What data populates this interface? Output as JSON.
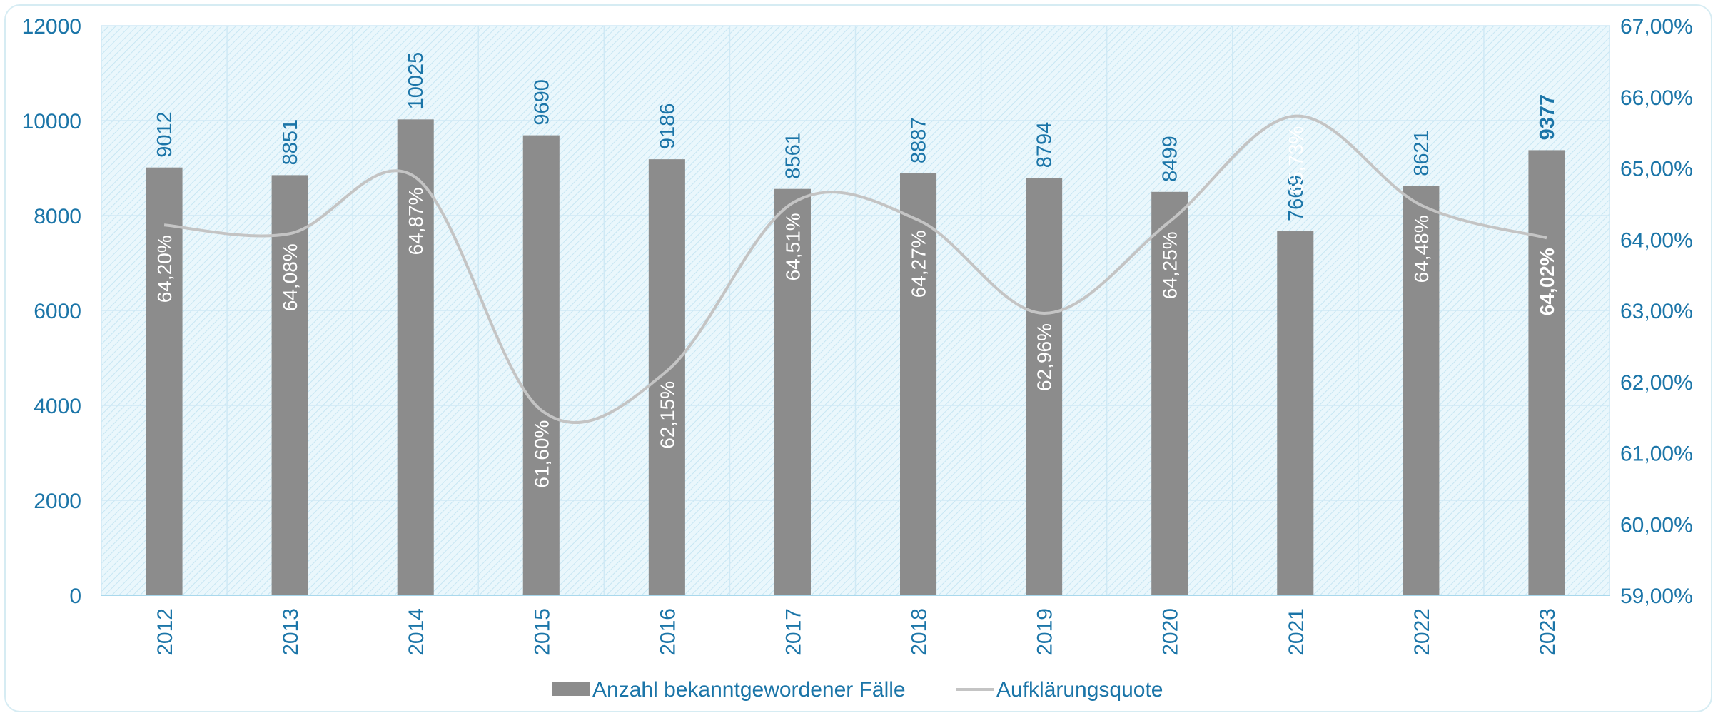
{
  "chart_data": {
    "type": "bar",
    "categories": [
      "2012",
      "2013",
      "2014",
      "2015",
      "2016",
      "2017",
      "2018",
      "2019",
      "2020",
      "2021",
      "2022",
      "2023"
    ],
    "series": [
      {
        "name": "Anzahl bekanntgewordener Fälle",
        "type": "bar",
        "axis": "left",
        "values": [
          9012,
          8851,
          10025,
          9690,
          9186,
          8561,
          8887,
          8794,
          8499,
          7669,
          8621,
          9377
        ],
        "labels": [
          "9012",
          "8851",
          "10025",
          "9690",
          "9186",
          "8561",
          "8887",
          "8794",
          "8499",
          "7669",
          "8621",
          "9377"
        ],
        "color": "#8c8c8c"
      },
      {
        "name": "Aufklärungsquote",
        "type": "line",
        "axis": "right",
        "values": [
          64.2,
          64.08,
          64.87,
          61.6,
          62.15,
          64.51,
          64.27,
          62.96,
          64.25,
          65.73,
          64.48,
          64.02
        ],
        "labels": [
          "64,20%",
          "64,08%",
          "64,87%",
          "61,60%",
          "62,15%",
          "64,51%",
          "64,27%",
          "62,96%",
          "64,25%",
          "65,73%",
          "64,48%",
          "64,02%"
        ],
        "color": "#c4c4c4"
      }
    ],
    "y_left": {
      "range": [
        0,
        12000
      ],
      "ticks": [
        "0",
        "2000",
        "4000",
        "6000",
        "8000",
        "10000",
        "12000"
      ]
    },
    "y_right": {
      "range": [
        59,
        67
      ],
      "ticks": [
        "59,00%",
        "60,00%",
        "61,00%",
        "62,00%",
        "63,00%",
        "64,00%",
        "65,00%",
        "66,00%",
        "67,00%"
      ]
    },
    "highlight_category": "2023",
    "grid": true,
    "legend_position": "bottom",
    "colors": {
      "axis_text": "#1b75a8",
      "grid": "#cfe9f5",
      "plot_background": "#e8f6fc",
      "hatch": "#c4e4f2"
    }
  }
}
